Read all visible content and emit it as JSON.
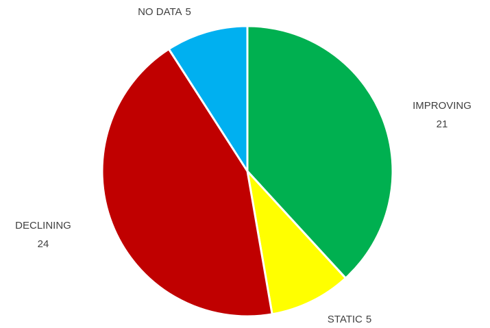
{
  "chart_data": {
    "type": "pie",
    "categories": [
      "IMPROVING",
      "STATIC",
      "DECLINING",
      "NO DATA"
    ],
    "values": [
      21,
      5,
      24,
      5
    ],
    "colors": [
      "#00b050",
      "#ffff00",
      "#c00000",
      "#00b0f0"
    ]
  }
}
